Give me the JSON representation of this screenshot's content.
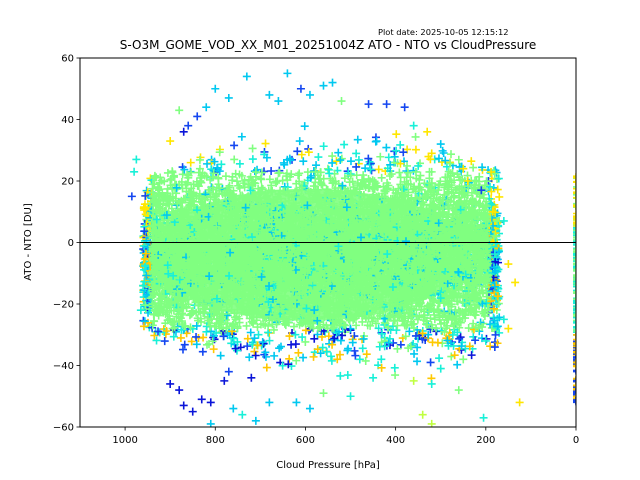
{
  "chart_data": {
    "type": "scatter",
    "title": "S-O3M_GOME_VOD_XX_M01_20251004Z ATO - NTO vs CloudPressure",
    "plot_date": "Plot date: 2025-10-05 12:15:12",
    "xlabel": "Cloud Pressure [hPa]",
    "ylabel": "ATO - NTO [DU]",
    "xlim": [
      1100,
      0
    ],
    "ylim": [
      -60,
      60
    ],
    "xticks": [
      1000,
      800,
      600,
      400,
      200,
      0
    ],
    "xtick_labels": [
      "1000",
      "800",
      "600",
      "400",
      "200",
      "0"
    ],
    "yticks": [
      60,
      40,
      20,
      0,
      -20,
      -40,
      -60
    ],
    "ytick_labels": [
      "60",
      "40",
      "20",
      "0",
      "−20",
      "−40",
      "−60"
    ],
    "zero_line": 0,
    "marker": "+",
    "colors": {
      "dark_blue": "#0a14d8",
      "blue": "#1446f0",
      "cyan": "#00c8f0",
      "aqua": "#18f0d8",
      "green": "#80ff80",
      "lime": "#c0ff40",
      "yellow": "#ffe600",
      "gold": "#ffc800"
    },
    "cloud": {
      "description_pressure_range": [
        960,
        170
      ],
      "core_value_range": [
        -30,
        25
      ],
      "core_color": "green",
      "edge_colors": [
        "cyan",
        "aqua",
        "yellow",
        "gold",
        "blue",
        "dark_blue",
        "lime"
      ],
      "point_count": 9000
    },
    "zero_pressure_column": {
      "pressure": 0,
      "value_range": [
        -52,
        22
      ]
    },
    "outliers": [
      {
        "x": 800,
        "y": 50,
        "c": "cyan"
      },
      {
        "x": 770,
        "y": 47,
        "c": "cyan"
      },
      {
        "x": 730,
        "y": 54,
        "c": "cyan"
      },
      {
        "x": 640,
        "y": 55,
        "c": "cyan"
      },
      {
        "x": 610,
        "y": 50,
        "c": "blue"
      },
      {
        "x": 560,
        "y": 51,
        "c": "cyan"
      },
      {
        "x": 540,
        "y": 52,
        "c": "cyan"
      },
      {
        "x": 520,
        "y": 46,
        "c": "green"
      },
      {
        "x": 680,
        "y": 48,
        "c": "cyan"
      },
      {
        "x": 660,
        "y": 46,
        "c": "cyan"
      },
      {
        "x": 590,
        "y": 48,
        "c": "cyan"
      },
      {
        "x": 460,
        "y": 45,
        "c": "blue"
      },
      {
        "x": 420,
        "y": 45,
        "c": "blue"
      },
      {
        "x": 380,
        "y": 44,
        "c": "blue"
      },
      {
        "x": 360,
        "y": 38,
        "c": "aqua"
      },
      {
        "x": 330,
        "y": 36,
        "c": "yellow"
      },
      {
        "x": 320,
        "y": 29,
        "c": "yellow"
      },
      {
        "x": 300,
        "y": 32,
        "c": "cyan"
      },
      {
        "x": 250,
        "y": 24,
        "c": "yellow"
      },
      {
        "x": 240,
        "y": 20,
        "c": "yellow"
      },
      {
        "x": 210,
        "y": 17,
        "c": "blue"
      },
      {
        "x": 185,
        "y": 10,
        "c": "yellow"
      },
      {
        "x": 160,
        "y": 7,
        "c": "aqua"
      },
      {
        "x": 150,
        "y": -7,
        "c": "yellow"
      },
      {
        "x": 135,
        "y": -13,
        "c": "yellow"
      },
      {
        "x": 160,
        "y": -25,
        "c": "aqua"
      },
      {
        "x": 150,
        "y": -28,
        "c": "yellow"
      },
      {
        "x": 180,
        "y": -34,
        "c": "blue"
      },
      {
        "x": 200,
        "y": -32,
        "c": "aqua"
      },
      {
        "x": 250,
        "y": -38,
        "c": "green"
      },
      {
        "x": 300,
        "y": -41,
        "c": "aqua"
      },
      {
        "x": 320,
        "y": -46,
        "c": "aqua"
      },
      {
        "x": 360,
        "y": -45,
        "c": "lime"
      },
      {
        "x": 340,
        "y": -56,
        "c": "lime"
      },
      {
        "x": 320,
        "y": -59,
        "c": "lime"
      },
      {
        "x": 205,
        "y": -57,
        "c": "aqua"
      },
      {
        "x": 125,
        "y": -52,
        "c": "yellow"
      },
      {
        "x": 260,
        "y": -48,
        "c": "green"
      },
      {
        "x": 450,
        "y": -44,
        "c": "aqua"
      },
      {
        "x": 500,
        "y": -50,
        "c": "aqua"
      },
      {
        "x": 560,
        "y": -49,
        "c": "green"
      },
      {
        "x": 590,
        "y": -54,
        "c": "cyan"
      },
      {
        "x": 620,
        "y": -52,
        "c": "cyan"
      },
      {
        "x": 680,
        "y": -52,
        "c": "cyan"
      },
      {
        "x": 710,
        "y": -58,
        "c": "cyan"
      },
      {
        "x": 740,
        "y": -56,
        "c": "aqua"
      },
      {
        "x": 760,
        "y": -54,
        "c": "cyan"
      },
      {
        "x": 810,
        "y": -59,
        "c": "cyan"
      },
      {
        "x": 850,
        "y": -55,
        "c": "dark_blue"
      },
      {
        "x": 870,
        "y": -53,
        "c": "dark_blue"
      },
      {
        "x": 810,
        "y": -52,
        "c": "dark_blue"
      },
      {
        "x": 830,
        "y": -51,
        "c": "dark_blue"
      },
      {
        "x": 880,
        "y": -48,
        "c": "dark_blue"
      },
      {
        "x": 900,
        "y": -46,
        "c": "dark_blue"
      },
      {
        "x": 780,
        "y": -45,
        "c": "dark_blue"
      },
      {
        "x": 770,
        "y": -42,
        "c": "blue"
      },
      {
        "x": 720,
        "y": -44,
        "c": "dark_blue"
      },
      {
        "x": 960,
        "y": -14,
        "c": "aqua"
      },
      {
        "x": 965,
        "y": -22,
        "c": "aqua"
      },
      {
        "x": 975,
        "y": 27,
        "c": "aqua"
      },
      {
        "x": 980,
        "y": 23,
        "c": "aqua"
      },
      {
        "x": 985,
        "y": 15,
        "c": "blue"
      },
      {
        "x": 880,
        "y": 43,
        "c": "green"
      },
      {
        "x": 860,
        "y": 38,
        "c": "blue"
      },
      {
        "x": 840,
        "y": 41,
        "c": "blue"
      },
      {
        "x": 820,
        "y": 44,
        "c": "cyan"
      },
      {
        "x": 870,
        "y": 36,
        "c": "dark_blue"
      },
      {
        "x": 900,
        "y": 33,
        "c": "yellow"
      }
    ]
  }
}
